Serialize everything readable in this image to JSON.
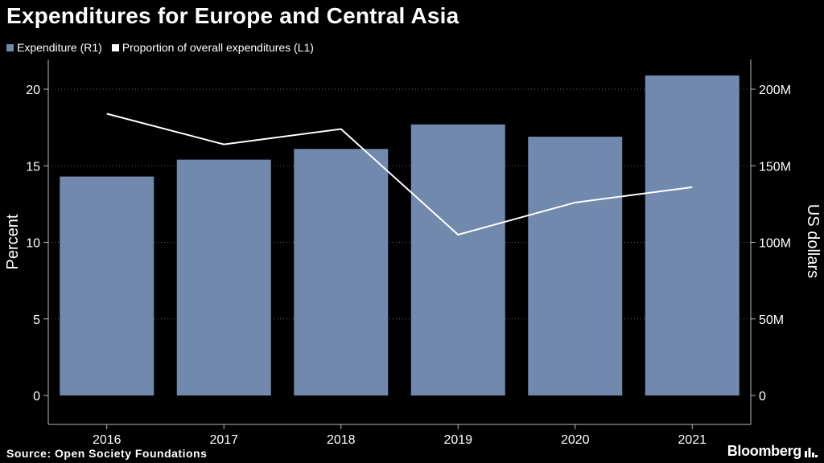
{
  "title": "Expenditures for Europe and Central Asia",
  "legend": {
    "bar_label": "Expenditure (R1)",
    "line_label": "Proportion of overall expenditures (L1)"
  },
  "footer": {
    "source": "Source: Open Society Foundations",
    "brand": "Bloomberg"
  },
  "colors": {
    "bar": "#7189ad",
    "line": "#ffffff",
    "background": "#000000",
    "grid": "#666666"
  },
  "chart_data": {
    "type": "bar",
    "categories": [
      "2016",
      "2017",
      "2018",
      "2019",
      "2020",
      "2021"
    ],
    "series": [
      {
        "name": "Expenditure (R1)",
        "type": "bar",
        "axis": "right",
        "values": [
          143,
          154,
          161,
          177,
          169,
          209
        ]
      },
      {
        "name": "Proportion of overall expenditures (L1)",
        "type": "line",
        "axis": "left",
        "values": [
          18.4,
          16.4,
          17.4,
          10.5,
          12.6,
          13.6
        ]
      }
    ],
    "left_axis": {
      "label": "Percent",
      "ylim": [
        0,
        20
      ],
      "ticks": [
        "0",
        "5",
        "10",
        "15",
        "20"
      ]
    },
    "right_axis": {
      "label": "US dollars",
      "ylim": [
        0,
        200
      ],
      "ticks": [
        "0",
        "50M",
        "100M",
        "150M",
        "200M"
      ]
    },
    "grid": true,
    "legend_position": "top-left"
  }
}
